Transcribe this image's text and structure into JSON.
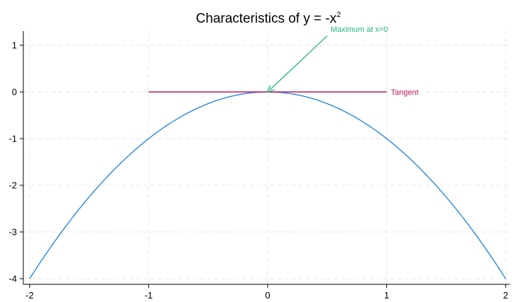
{
  "chart_data": {
    "type": "line",
    "title": "Characteristics of y = -x",
    "title_superscript": "2",
    "xlabel": "",
    "ylabel": "",
    "xlim": [
      -2,
      2
    ],
    "ylim": [
      -4,
      1
    ],
    "x_ticks": [
      -2,
      -1,
      0,
      1,
      2
    ],
    "y_ticks": [
      1,
      0,
      -1,
      -2,
      -3,
      -4
    ],
    "grid": true,
    "series": [
      {
        "function": "y = -x^2",
        "color": "#1a7fe6",
        "x_range": [
          -2,
          2
        ],
        "points": [
          [
            -2,
            -4
          ],
          [
            -1.5,
            -2.25
          ],
          [
            -1,
            -1
          ],
          [
            -0.5,
            -0.25
          ],
          [
            0,
            0
          ],
          [
            0.5,
            -0.25
          ],
          [
            1,
            -1
          ],
          [
            1.5,
            -2.25
          ],
          [
            2,
            -4
          ]
        ]
      },
      {
        "function": "y = 0",
        "color": "#c2185b",
        "x_range": [
          -1,
          1
        ],
        "points": [
          [
            -1,
            0
          ],
          [
            1,
            0
          ]
        ]
      }
    ],
    "annotations": [
      {
        "text": "Maximum at x=0",
        "color": "#1fb57a",
        "arrow_from": [
          0.5,
          1.2
        ],
        "arrow_to": [
          0,
          0
        ]
      },
      {
        "text": "Tangent",
        "color": "#c2185b",
        "anchor": [
          1,
          0
        ]
      }
    ]
  }
}
